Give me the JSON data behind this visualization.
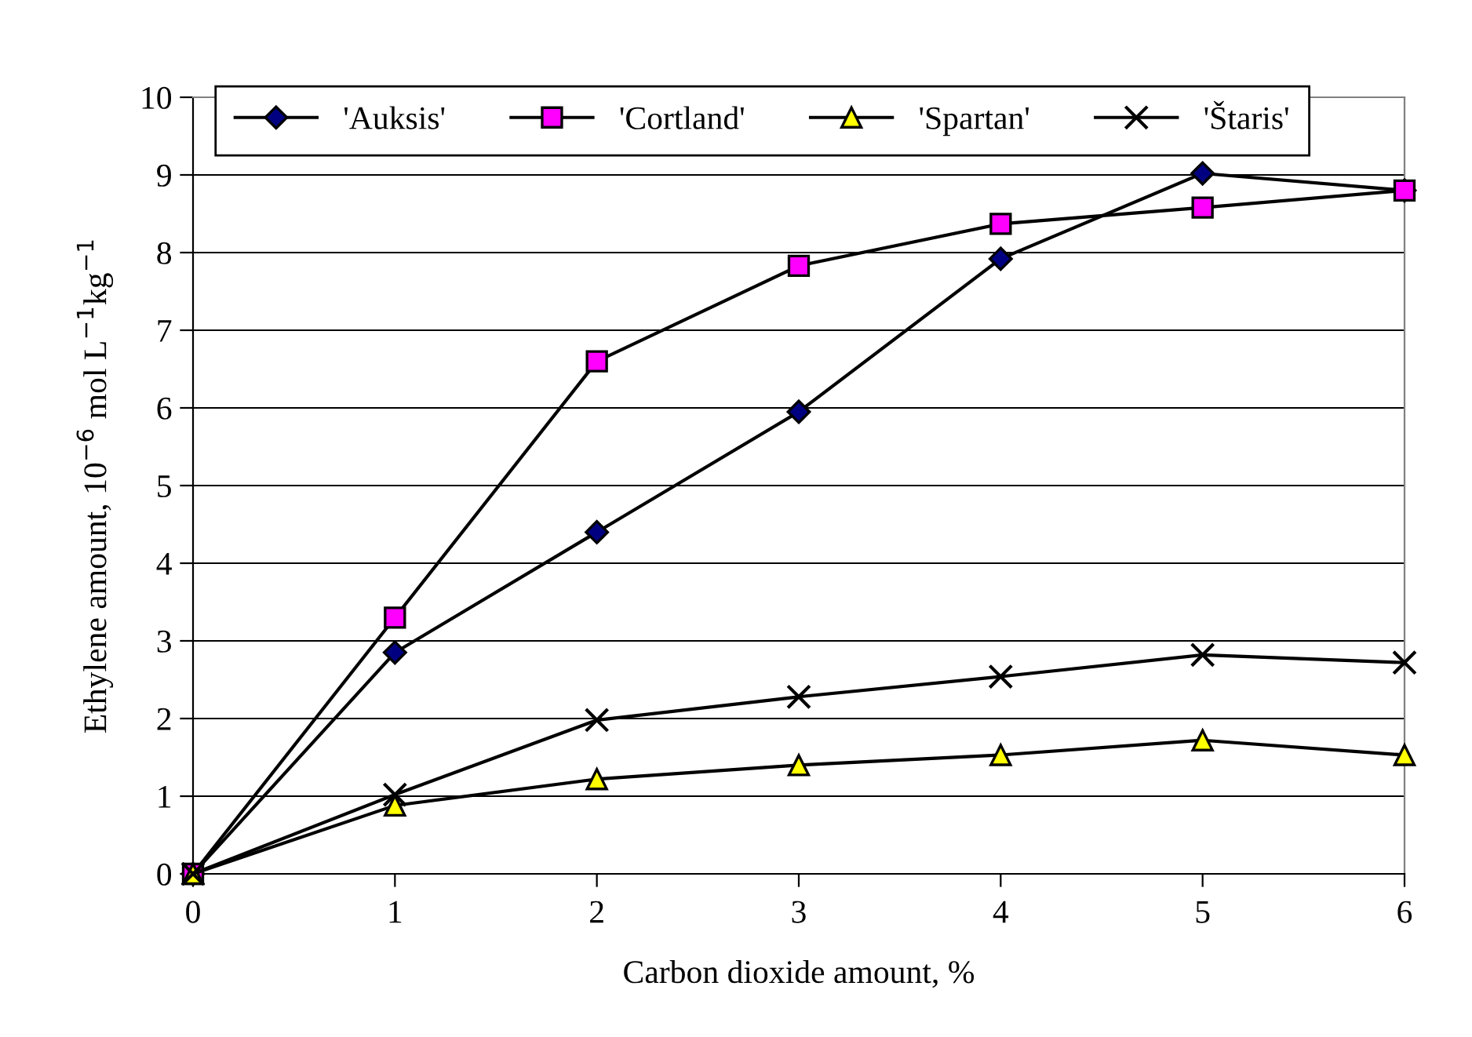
{
  "chart_data": {
    "type": "line",
    "xlabel": "Carbon dioxide amount, %",
    "ylabel": "Ethylene amount, 10$^{−6}$ mol L$^{−1}$kg$^{−1}$",
    "x": [
      0,
      1,
      2,
      3,
      4,
      5,
      6
    ],
    "series": [
      {
        "name": "'Auksis'",
        "color": "#000080",
        "marker": "diamond",
        "values": [
          0,
          2.85,
          4.4,
          5.95,
          7.92,
          9.02,
          8.8
        ]
      },
      {
        "name": "'Cortland'",
        "color": "#ff00ff",
        "marker": "square",
        "values": [
          0,
          3.3,
          6.6,
          7.83,
          8.37,
          8.58,
          8.8
        ]
      },
      {
        "name": "'Spartan'",
        "color": "#ffff00",
        "marker": "triangle",
        "values": [
          0,
          0.88,
          1.22,
          1.4,
          1.53,
          1.72,
          1.53
        ]
      },
      {
        "name": "'Štaris'",
        "color": "#000000",
        "marker": "cross",
        "values": [
          0,
          1.02,
          1.98,
          2.28,
          2.54,
          2.82,
          2.72
        ]
      }
    ],
    "xlim": [
      0,
      6
    ],
    "xticks": [
      0,
      1,
      2,
      3,
      4,
      5,
      6
    ],
    "ylim": [
      0,
      10
    ],
    "yticks": [
      0,
      1,
      2,
      3,
      4,
      5,
      6,
      7,
      8,
      9,
      10
    ],
    "grid": "y",
    "legend": "top",
    "line_style": "solid"
  }
}
